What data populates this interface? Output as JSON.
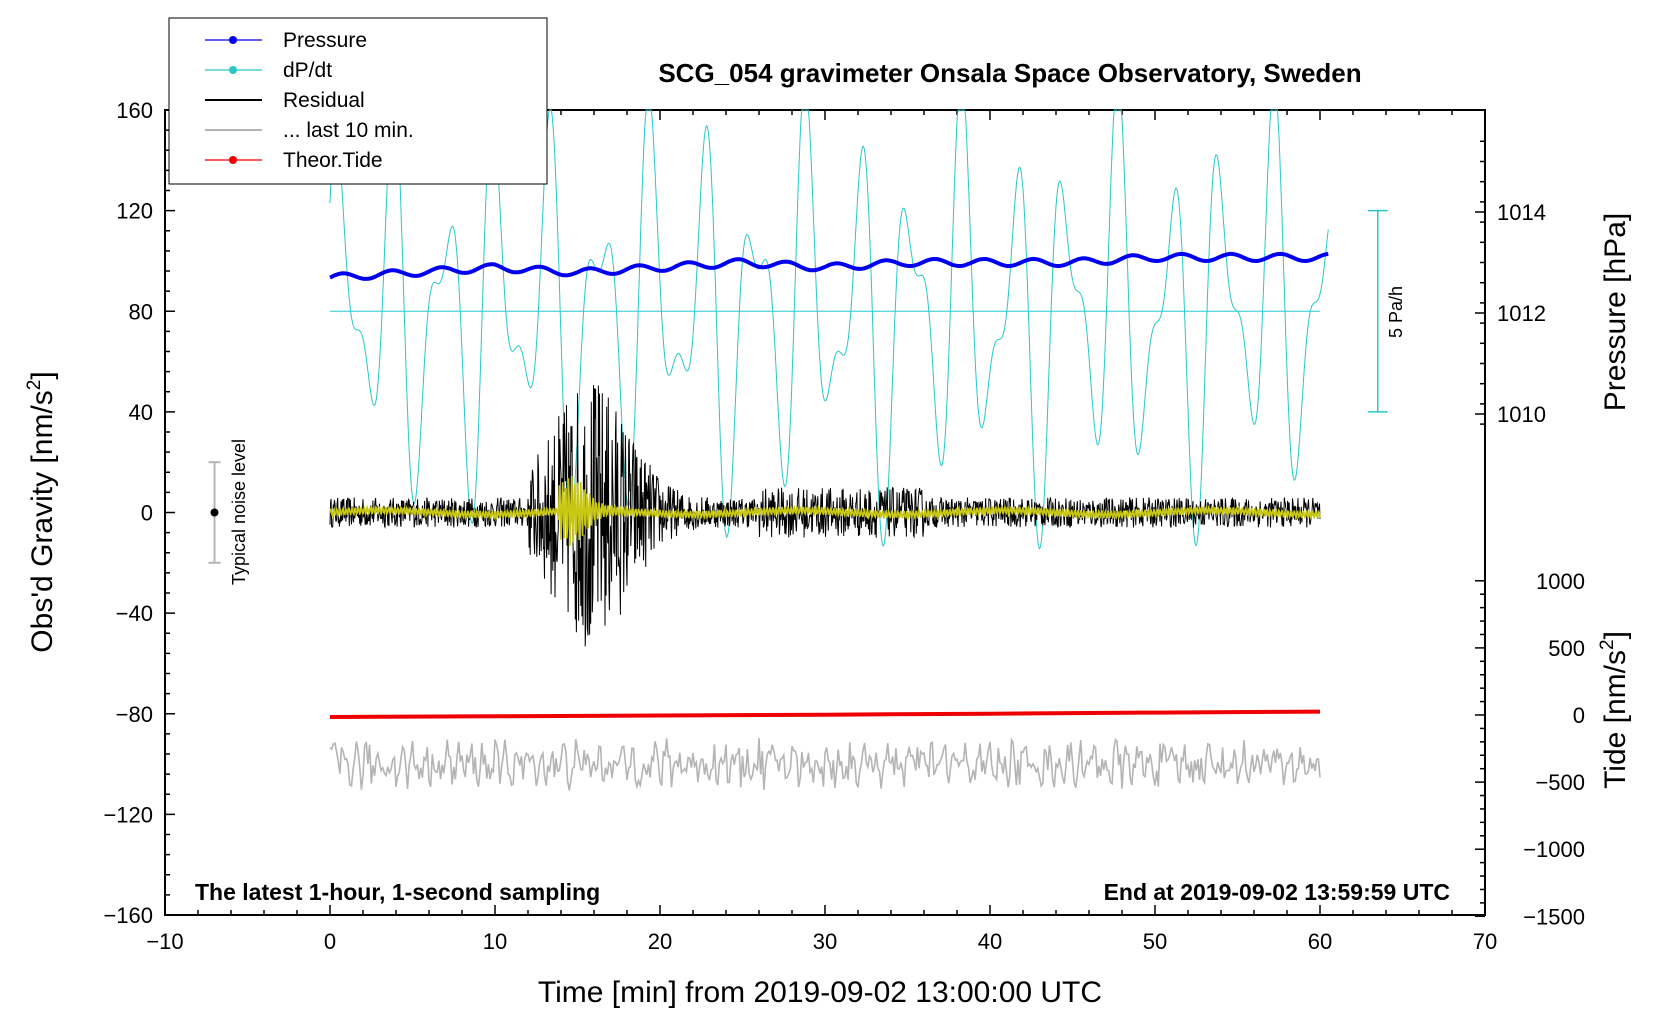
{
  "chart_data": {
    "type": "line",
    "title": "SCG_054 gravimeter Onsala Space Observatory, Sweden",
    "xlabel": "Time [min] from 2019-09-02 13:00:00 UTC",
    "xlim": [
      -10,
      70
    ],
    "x_ticks": [
      "−10",
      "0",
      "10",
      "20",
      "30",
      "40",
      "50",
      "60",
      "70"
    ],
    "y_left": {
      "label_main": "Obs'd Gravity [nm/s",
      "label_sup": "2",
      "label_end": "]",
      "ylim": [
        -160,
        160
      ],
      "ticks": [
        "160",
        "120",
        "80",
        "40",
        "0",
        "−40",
        "−80",
        "−120",
        "−160"
      ]
    },
    "y_right_pressure": {
      "label": "Pressure [hPa]",
      "ticks": [
        "1014",
        "1012",
        "1010"
      ],
      "values": [
        1014,
        1012,
        1010
      ]
    },
    "y_right_tide": {
      "label_main": "Tide [nm/s",
      "label_sup": "2",
      "label_end": "]",
      "ticks": [
        "1000",
        "500",
        "0",
        "−500",
        "−1000",
        "−1500"
      ],
      "values": [
        1000,
        500,
        0,
        -500,
        -1000,
        -1500
      ]
    },
    "legend": [
      {
        "name": "Pressure",
        "color": "#0000ee",
        "marker": true
      },
      {
        "name": "dP/dt",
        "color": "#28c8c8",
        "marker": true
      },
      {
        "name": "Residual",
        "color": "#000000",
        "marker": false
      },
      {
        "name": "... last 10 min.",
        "color": "#b4b4b4",
        "marker": false
      },
      {
        "name": "Theor.Tide",
        "color": "#ee0000",
        "marker": true
      }
    ],
    "annotations": {
      "bottom_left": "The latest 1-hour, 1-second sampling",
      "bottom_right": "End at 2019-09-02 13:59:59 UTC",
      "noise": "Typical noise level",
      "dpdt_scale": "5 Pa/h"
    },
    "series": [
      {
        "name": "Pressure",
        "unit": "hPa",
        "x": [
          0,
          5,
          10,
          15,
          20,
          25,
          30,
          35,
          40,
          45,
          50,
          55,
          60
        ],
        "values": [
          1012.7,
          1012.8,
          1012.9,
          1012.8,
          1012.9,
          1013.0,
          1012.9,
          1013.0,
          1013.0,
          1013.0,
          1013.1,
          1013.1,
          1013.1
        ]
      },
      {
        "name": "Theor.Tide",
        "unit": "nm/s2",
        "x": [
          0,
          10,
          20,
          30,
          40,
          50,
          60
        ],
        "values": [
          -15,
          -10,
          -4,
          2,
          10,
          18,
          25
        ]
      },
      {
        "name": "dP/dt",
        "baseline_y": 80
      },
      {
        "name": "Residual",
        "baseline_y": 0
      },
      {
        "name": "... last 10 min.",
        "baseline_y": -100
      }
    ],
    "noise_bar": {
      "x": -7,
      "low": -20,
      "high": 20,
      "center": 0
    }
  }
}
